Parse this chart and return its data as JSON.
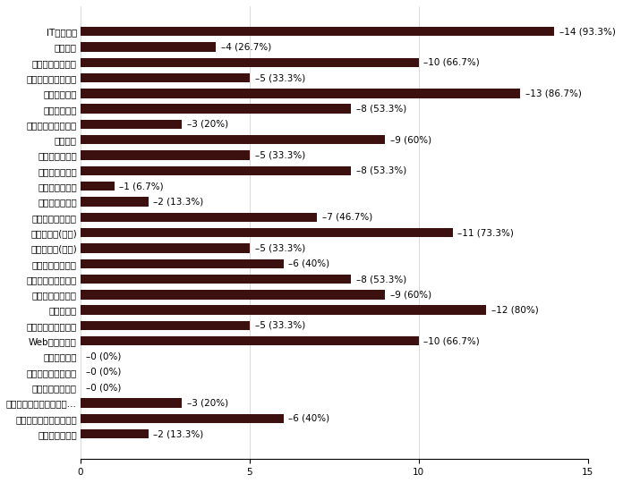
{
  "categories": [
    "ITスキルズ",
    "情報科学",
    "コンピュータ概論",
    "情報セキュリティ論",
    "経営情報総論",
    "経営工学概論",
    "経営情報システム論",
    "経営科学",
    "経営データ解析",
    "情報資源管理論",
    "生産システム論",
    "品質システム論",
    "コンピュータ通論",
    "情報処理論(基礎)",
    "情報処理論(応用)",
    "情報社会・倫理論",
    "マルチメディア演習",
    "コンピュータ初級",
    "情報と職業",
    "情報システム構築論",
    "Webデザイン論",
    "電子商取引論",
    "デジタルビジネス論",
    "ソフトウェア工学",
    "インターネットセキュリ...",
    "モバイルアプリ開発演習",
    "経営基本統計学"
  ],
  "values": [
    14,
    4,
    10,
    5,
    13,
    8,
    3,
    9,
    5,
    8,
    1,
    2,
    7,
    11,
    5,
    6,
    8,
    9,
    12,
    5,
    10,
    0,
    0,
    0,
    3,
    6,
    2
  ],
  "labels": [
    "14 (93.3%)",
    "4 (26.7%)",
    "10 (66.7%)",
    "5 (33.3%)",
    "13 (86.7%)",
    "8 (53.3%)",
    "3 (20%)",
    "9 (60%)",
    "5 (33.3%)",
    "8 (53.3%)",
    "1 (6.7%)",
    "2 (13.3%)",
    "7 (46.7%)",
    "11 (73.3%)",
    "5 (33.3%)",
    "6 (40%)",
    "8 (53.3%)",
    "9 (60%)",
    "12 (80%)",
    "5 (33.3%)",
    "10 (66.7%)",
    "0 (0%)",
    "0 (0%)",
    "0 (0%)",
    "3 (20%)",
    "6 (40%)",
    "2 (13.3%)"
  ],
  "bar_color": "#3d1010",
  "background_color": "#ffffff",
  "xlim": [
    0,
    15
  ],
  "xticks": [
    0,
    5,
    10,
    15
  ],
  "figsize": [
    6.96,
    5.4
  ],
  "dpi": 100,
  "bar_height": 0.6,
  "label_fontsize": 7.5,
  "tick_fontsize": 7.5
}
